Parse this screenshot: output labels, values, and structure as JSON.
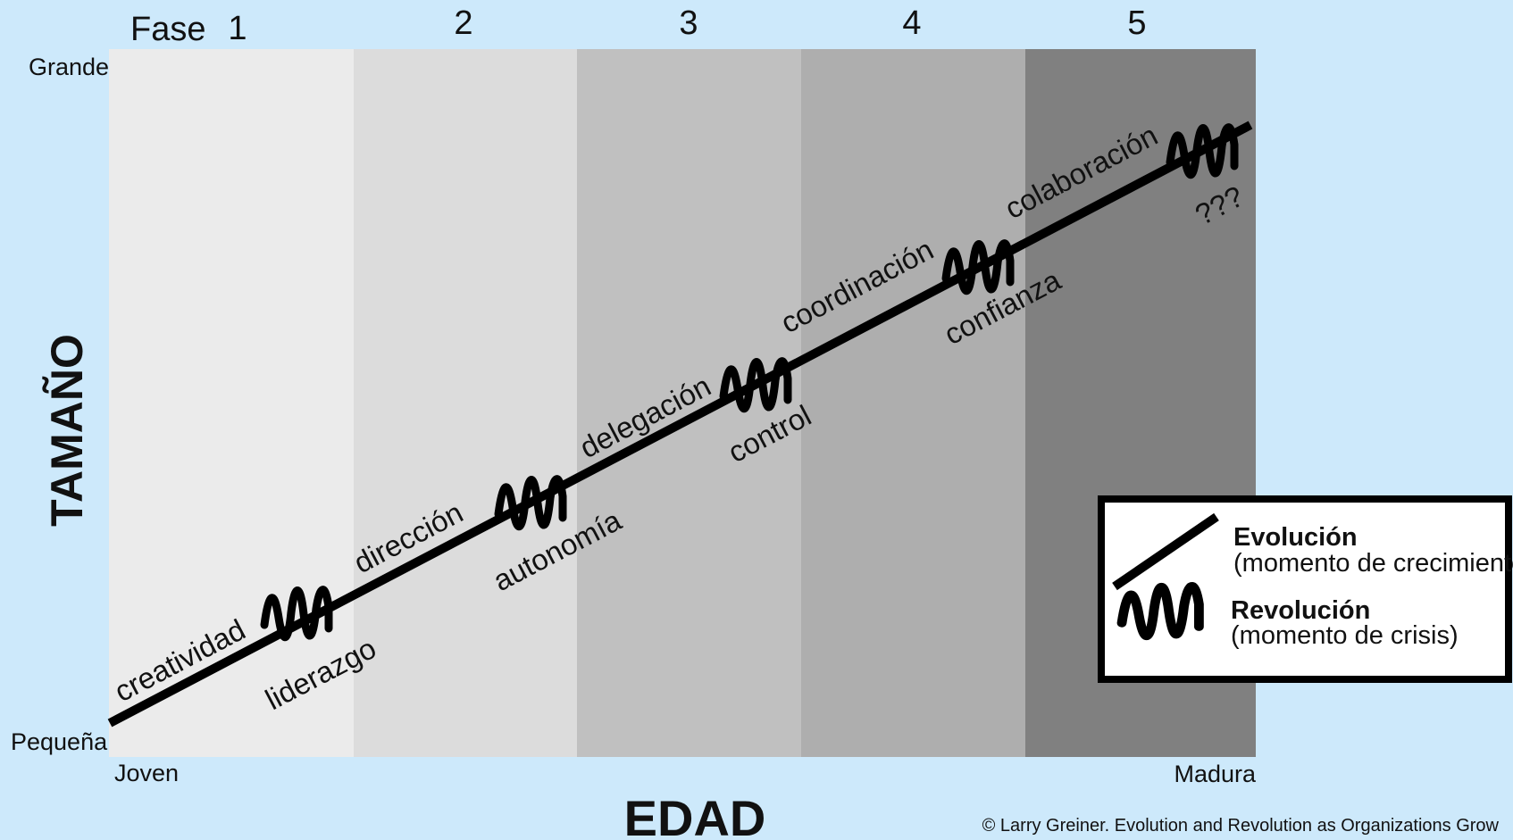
{
  "header": {
    "fase_label": "Fase",
    "phases": [
      "1",
      "2",
      "3",
      "4",
      "5"
    ]
  },
  "axes": {
    "y_title": "TAMAÑO",
    "y_top": "Grande",
    "y_bottom": "Pequeña",
    "x_title": "EDAD",
    "x_left": "Joven",
    "x_right": "Madura"
  },
  "phase_colors": [
    "#ebebeb",
    "#dcdcdc",
    "#c0c0c0",
    "#aeaeae",
    "#808080"
  ],
  "evolution_labels": [
    "creatividad",
    "dirección",
    "delegación",
    "coordinación",
    "colaboración"
  ],
  "revolution_labels": [
    "liderazgo",
    "autonomía",
    "control",
    "confianza",
    "???"
  ],
  "legend": {
    "evolution_title": "Evolución",
    "evolution_desc": "(momento de crecimiento)",
    "revolution_title": "Revolución",
    "revolution_desc": "(momento de crisis)"
  },
  "credit": "© Larry Greiner. Evolution and Revolution as Organizations Grow"
}
